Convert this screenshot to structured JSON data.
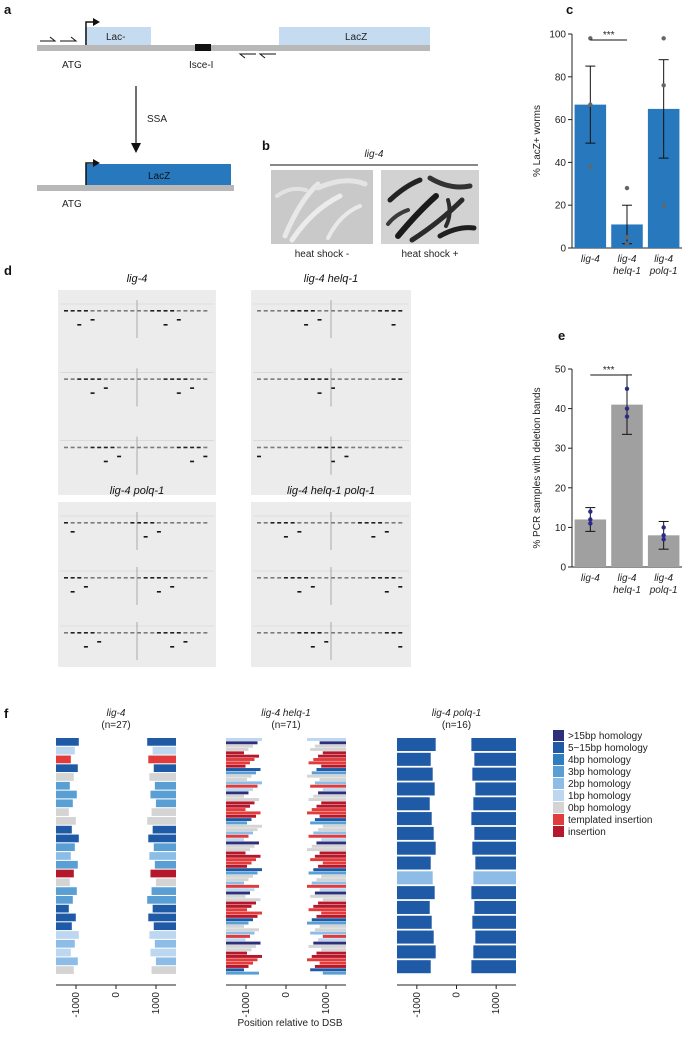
{
  "panels": {
    "a": "a",
    "b": "b",
    "c": "c",
    "d": "d",
    "e": "e",
    "f": "f"
  },
  "schematic": {
    "lac_minus": "Lac-",
    "lacz_top": "LacZ",
    "atg_top": "ATG",
    "isce": "Isce-I",
    "ssa": "SSA",
    "lacz_bottom": "LacZ",
    "atg_bottom": "ATG"
  },
  "photo": {
    "title": "lig-4",
    "left_caption": "heat shock -",
    "right_caption": "heat shock +"
  },
  "gels": {
    "labels": [
      "lig-4",
      "lig-4 helq-1",
      "lig-4 polq-1",
      "lig-4 helq-1 polq-1"
    ]
  },
  "chart_data": [
    {
      "panel": "c",
      "type": "bar",
      "categories": [
        "lig-4",
        "lig-4 helq-1",
        "lig-4 polq-1"
      ],
      "values": [
        67,
        11,
        65
      ],
      "errors": [
        18,
        9,
        23
      ],
      "points": [
        [
          98,
          67,
          38
        ],
        [
          28,
          5,
          2
        ],
        [
          98,
          76,
          20
        ]
      ],
      "ylabel": "% LacZ+ worms",
      "ylim": [
        0,
        100
      ],
      "yticks": [
        "0",
        "20",
        "40",
        "60",
        "80",
        "100"
      ],
      "significance": "***",
      "color": "#2878be"
    },
    {
      "panel": "e",
      "type": "bar",
      "categories": [
        "lig-4",
        "lig-4 helq-1",
        "lig-4 polq-1"
      ],
      "values": [
        12,
        41,
        8
      ],
      "errors": [
        3,
        7.5,
        3.5
      ],
      "points": [
        [
          14,
          12,
          11
        ],
        [
          45,
          38,
          40
        ],
        [
          10,
          7,
          8
        ]
      ],
      "ylabel": "% PCR samples with deletion bands",
      "ylim": [
        0,
        50
      ],
      "yticks": [
        "0",
        "10",
        "20",
        "30",
        "40",
        "50"
      ],
      "significance": "***",
      "color": "#a0a0a0"
    },
    {
      "panel": "f",
      "type": "bar",
      "xlabel": "Position relative to DSB",
      "xticks": [
        "-1000",
        "0",
        "1000"
      ],
      "xlim": [
        -1500,
        1500
      ],
      "groups": [
        {
          "title": "lig-4",
          "n": "(n=27)"
        },
        {
          "title": "lig-4 helq-1",
          "n": "(n=71)"
        },
        {
          "title": "lig-4 polq-1",
          "n": "(n=16)"
        }
      ],
      "legend": [
        {
          "label": ">15bp homology",
          "color": "#2d2f7b"
        },
        {
          "label": "5−15bp homology",
          "color": "#1f5aa6"
        },
        {
          "label": "4bp homology",
          "color": "#2f7fbf"
        },
        {
          "label": "3bp homology",
          "color": "#5a9fd4"
        },
        {
          "label": "2bp homology",
          "color": "#8dbde6"
        },
        {
          "label": "1bp homology",
          "color": "#bcd7ef"
        },
        {
          "label": "0bp homology",
          "color": "#d4d4d4"
        },
        {
          "label": "templated insertion",
          "color": "#e23b3b"
        },
        {
          "label": "insertion",
          "color": "#b5182b"
        }
      ]
    }
  ]
}
